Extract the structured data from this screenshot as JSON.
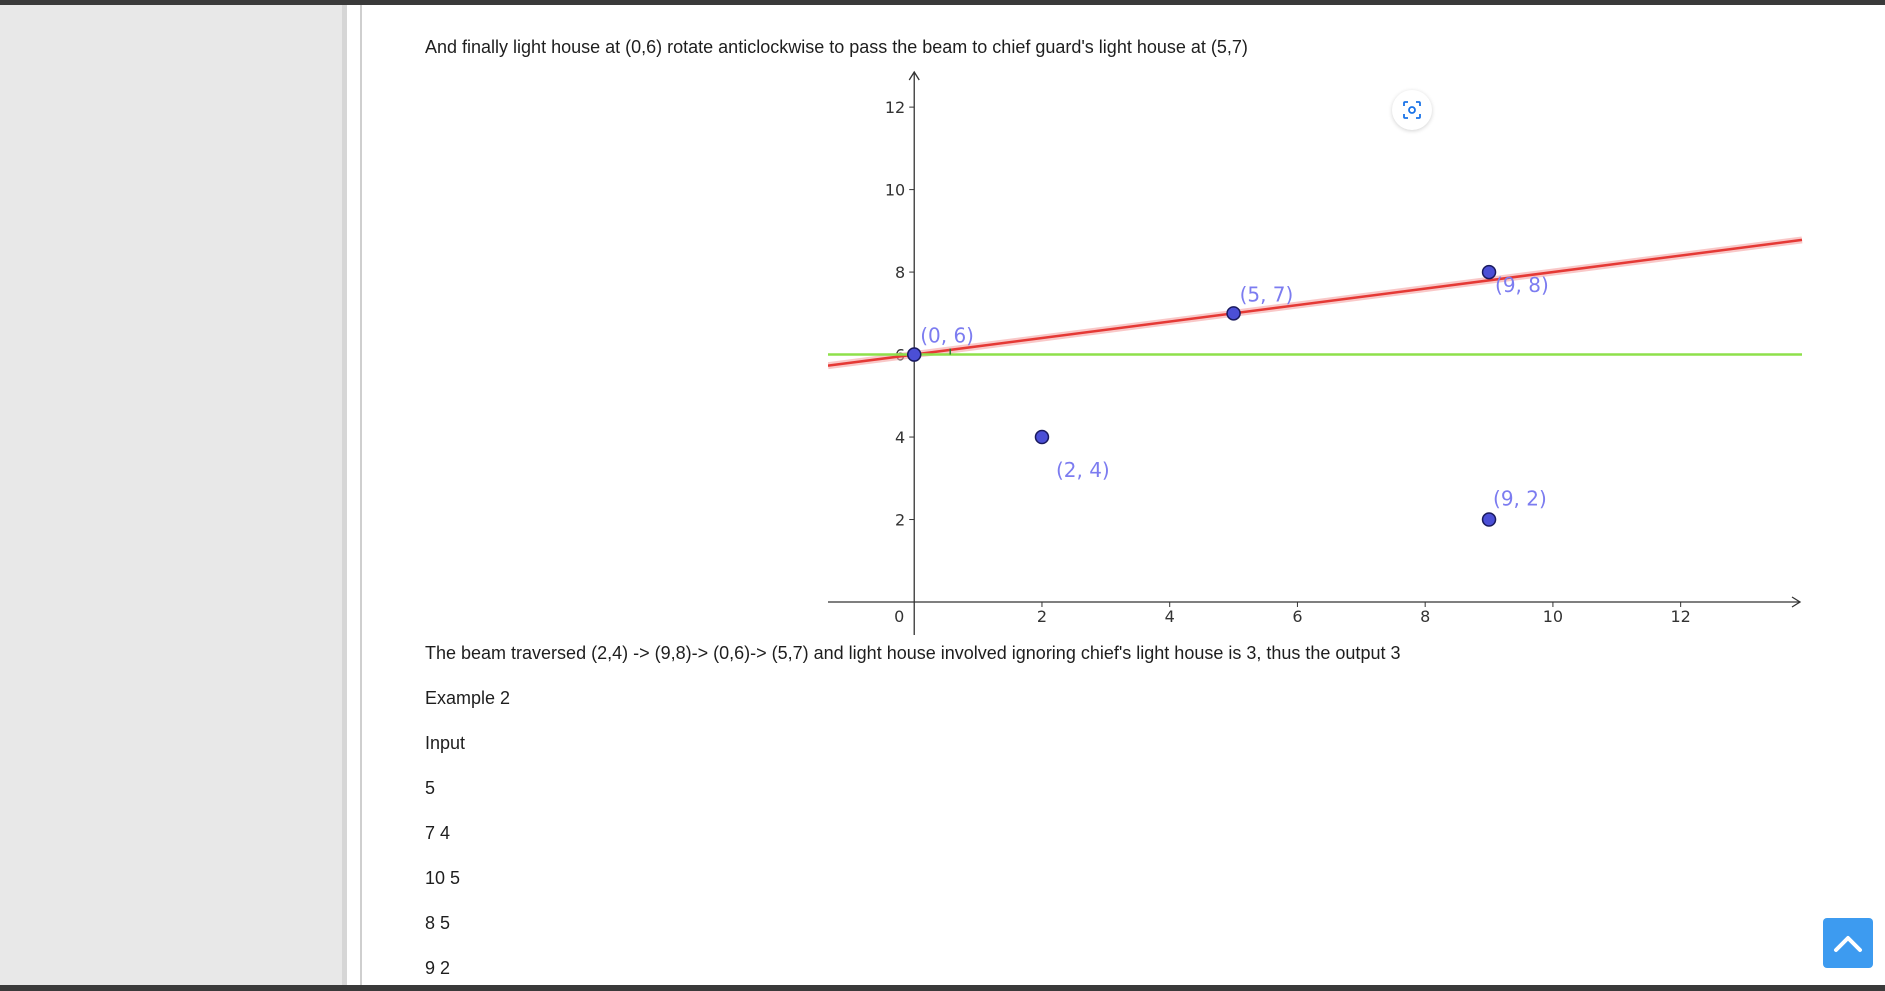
{
  "paragraphs": {
    "intro": "And finally light house at (0,6) rotate anticlockwise to pass the beam to chief guard's light house at (5,7)",
    "summary": "The beam traversed (2,4) -> (9,8)-> (0,6)-> (5,7) and light house involved ignoring chief's light house is 3, thus the output 3",
    "example_heading": "Example 2",
    "input_label": "Input",
    "input_lines": [
      "5",
      "7 4",
      "10 5",
      "8 5",
      "9 2"
    ]
  },
  "chart_data": {
    "type": "scatter",
    "title": "",
    "xlabel": "",
    "ylabel": "",
    "xlim": [
      -1.35,
      13.9
    ],
    "ylim": [
      -0.8,
      12.9
    ],
    "x_ticks": [
      0,
      2,
      4,
      6,
      8,
      10,
      12
    ],
    "y_ticks": [
      2,
      4,
      6,
      8,
      10,
      12
    ],
    "grid": false,
    "points": [
      {
        "x": 0,
        "y": 6,
        "label": "(0, 6)"
      },
      {
        "x": 5,
        "y": 7,
        "label": "(5, 7)"
      },
      {
        "x": 9,
        "y": 8,
        "label": "(9, 8)"
      },
      {
        "x": 2,
        "y": 4,
        "label": "(2, 4)"
      },
      {
        "x": 9,
        "y": 2,
        "label": "(9, 2)"
      }
    ],
    "lines": [
      {
        "name": "beam",
        "color": "#e53935",
        "points": [
          [
            -1.35,
            5.73
          ],
          [
            13.9,
            8.78
          ]
        ]
      },
      {
        "name": "horizontal",
        "color": "#8ee04a",
        "points": [
          [
            -1.35,
            6
          ],
          [
            13.9,
            6
          ]
        ]
      }
    ],
    "colors": {
      "point_fill": "#4b4fd6",
      "label": "#7c7cf0",
      "axis": "#333333"
    }
  },
  "icons": {
    "recenter": "recenter-view-icon",
    "scroll_top": "chevron-up-icon"
  }
}
